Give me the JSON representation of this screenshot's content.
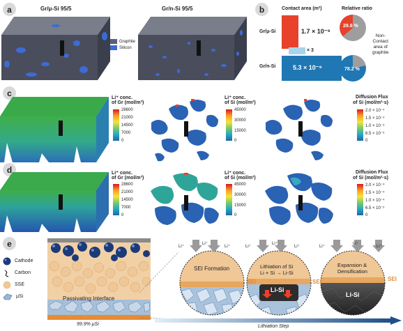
{
  "panels": {
    "a": {
      "letter": "a",
      "left_label": "Gr/μ-Si  95/5",
      "right_label": "Gr/n-Si  95/5",
      "legend": [
        {
          "label": "Graphite",
          "color": "#5b5f7a"
        },
        {
          "label": "Silicon",
          "color": "#3d6bd6"
        }
      ]
    },
    "b": {
      "letter": "b",
      "header_contact": "Contact area (m²)",
      "header_ratio": "Relative ratio",
      "row1_label": "Gr/μ-Si",
      "row2_label": "Gr/n-Si",
      "value1": "1.7 × 10⁻⁹",
      "value2": "5.3 × 10⁻⁹",
      "multiplier": "× 3",
      "pie1_pct": "29.8 %",
      "pie2_pct": "78.2 %",
      "non_contact_label": "Non-\nContact\narea of\ngraphite",
      "colors": {
        "bar1": "#e8412c",
        "bar2": "#1f77b4",
        "multiplier_bg": "#a9d4ec"
      }
    },
    "c": {
      "letter": "c",
      "cbar_gr": {
        "title_l1": "Li⁺ conc.",
        "title_l2": "of Gr (mol/m³)",
        "ticks": [
          "28600",
          "21000",
          "14500",
          "7000",
          "0"
        ]
      },
      "cbar_si": {
        "title_l1": "Li⁺ conc.",
        "title_l2": "of Si (mol/m³)",
        "ticks": [
          "45000",
          "30000",
          "15000",
          "0"
        ]
      },
      "cbar_flux": {
        "title_l1": "Diffusion Flux",
        "title_l2": "of Si (mol/m²·s)",
        "ticks": [
          "2.0 × 10⁻⁴",
          "1.5 × 10⁻⁴",
          "1.0 × 10⁻⁴",
          "6.5 × 10⁻⁵",
          "0"
        ]
      }
    },
    "d": {
      "letter": "d",
      "cbar_gr": {
        "title_l1": "Li⁺ conc.",
        "title_l2": "of Gr (mol/m³)",
        "ticks": [
          "28600",
          "21000",
          "14500",
          "7000",
          "0"
        ]
      },
      "cbar_si": {
        "title_l1": "Li⁺ conc.",
        "title_l2": "of Si (mol/m³)",
        "ticks": [
          "45000",
          "30000",
          "15000",
          "0"
        ]
      },
      "cbar_flux": {
        "title_l1": "Diffusion Flux",
        "title_l2": "of Si (mol/m²·s)",
        "ticks": [
          "2.0 × 10⁻⁴",
          "1.5 × 10⁻⁴",
          "1.0 × 10⁻⁴",
          "6.5 × 10⁻⁵",
          "0"
        ]
      }
    },
    "e": {
      "letter": "e",
      "legend": [
        {
          "label": "Cathode",
          "icon": "cathode-icon"
        },
        {
          "label": "Carbon",
          "icon": "carbon-icon"
        },
        {
          "label": "SSE",
          "icon": "sse-icon"
        },
        {
          "label": "μSi",
          "icon": "si-icon"
        }
      ],
      "passivating": "Passivating Interface",
      "purity": "99.9% μSi",
      "li_plus": "Li⁺",
      "stage1": "SEI Formation",
      "stage2_l1": "Lithiation of Si",
      "stage2_l2": "Li + Si → Li-Si",
      "stage2_core": "Li-Si",
      "stage3_l1": "Expansion &",
      "stage3_l2": "Densification",
      "stage3_core": "Li-Si",
      "sei": "SEI",
      "arrow_label": "Lithiation Step"
    }
  }
}
